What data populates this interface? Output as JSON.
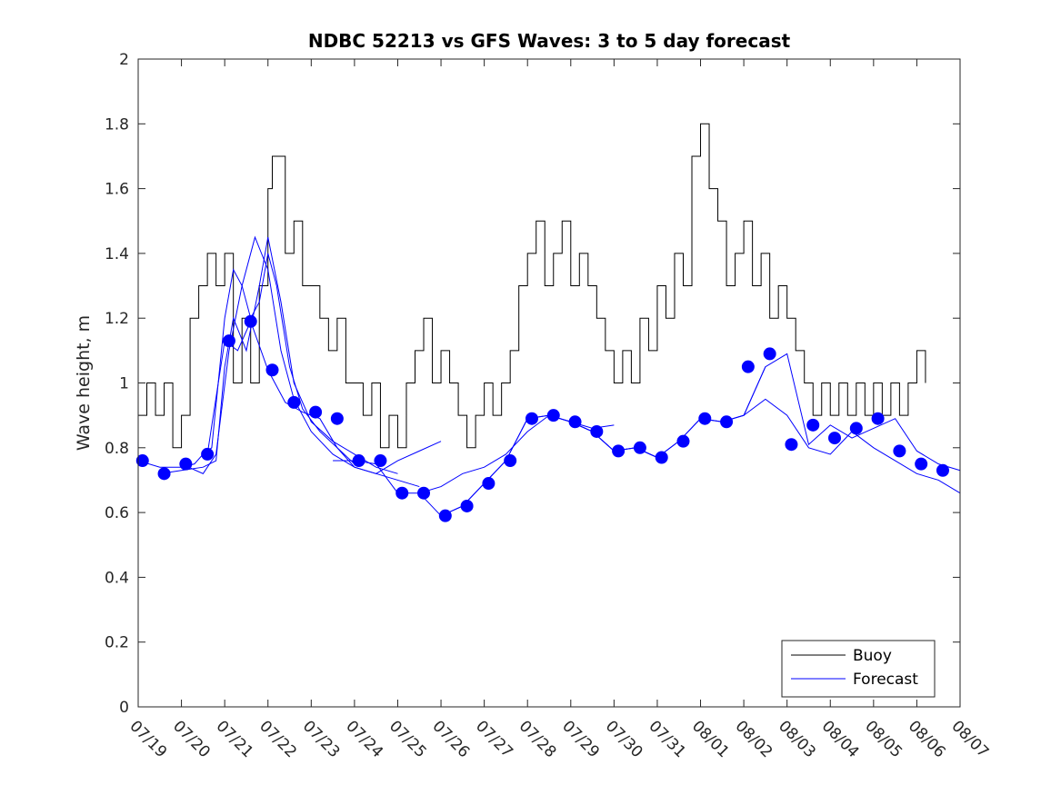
{
  "chart_data": {
    "type": "line",
    "title": "NDBC 52213 vs GFS Waves: 3 to 5 day forecast",
    "xlabel": "",
    "ylabel": "Wave height, m",
    "xlim": [
      0,
      19
    ],
    "ylim": [
      0,
      2
    ],
    "x_ticks": [
      "07/19",
      "07/20",
      "07/21",
      "07/22",
      "07/23",
      "07/24",
      "07/25",
      "07/26",
      "07/27",
      "07/28",
      "07/29",
      "07/30",
      "07/31",
      "08/01",
      "08/02",
      "08/03",
      "08/04",
      "08/05",
      "08/06",
      "08/07"
    ],
    "y_ticks": [
      "0",
      "0.2",
      "0.4",
      "0.6",
      "0.8",
      "1",
      "1.2",
      "1.4",
      "1.6",
      "1.8",
      "2"
    ],
    "grid": false,
    "legend": {
      "placement": "bottom-right",
      "entries": [
        "Buoy",
        "Forecast"
      ]
    },
    "colors": {
      "buoy": "#000000",
      "forecast": "#0000ff"
    },
    "series": [
      {
        "name": "Buoy",
        "x": [
          0,
          0.2,
          0.4,
          0.6,
          0.8,
          1.0,
          1.2,
          1.4,
          1.6,
          1.8,
          2.0,
          2.2,
          2.4,
          2.6,
          2.8,
          3.0,
          3.1,
          3.2,
          3.4,
          3.6,
          3.8,
          4.0,
          4.2,
          4.4,
          4.6,
          4.8,
          5.0,
          5.2,
          5.4,
          5.6,
          5.8,
          6.0,
          6.2,
          6.4,
          6.6,
          6.8,
          7.0,
          7.2,
          7.4,
          7.6,
          7.8,
          8.0,
          8.2,
          8.4,
          8.6,
          8.8,
          9.0,
          9.2,
          9.4,
          9.6,
          9.8,
          10.0,
          10.2,
          10.4,
          10.6,
          10.8,
          11.0,
          11.2,
          11.4,
          11.6,
          11.8,
          12.0,
          12.2,
          12.4,
          12.6,
          12.8,
          13.0,
          13.2,
          13.4,
          13.6,
          13.8,
          14.0,
          14.2,
          14.4,
          14.6,
          14.8,
          15.0,
          15.2,
          15.4,
          15.6,
          15.8,
          16.0,
          16.2,
          16.4,
          16.6,
          16.8,
          17.0,
          17.2,
          17.4,
          17.6,
          17.8,
          18.0,
          18.2
        ],
        "y": [
          0.9,
          1.0,
          0.9,
          1.0,
          0.8,
          0.9,
          1.2,
          1.3,
          1.4,
          1.3,
          1.4,
          1.0,
          1.2,
          1.0,
          1.3,
          1.6,
          1.7,
          1.7,
          1.4,
          1.5,
          1.3,
          1.3,
          1.2,
          1.1,
          1.2,
          1.0,
          1.0,
          0.9,
          1.0,
          0.8,
          0.9,
          0.8,
          1.0,
          1.1,
          1.2,
          1.0,
          1.1,
          1.0,
          0.9,
          0.8,
          0.9,
          1.0,
          0.9,
          1.0,
          1.1,
          1.3,
          1.4,
          1.5,
          1.3,
          1.4,
          1.5,
          1.3,
          1.4,
          1.3,
          1.2,
          1.1,
          1.0,
          1.1,
          1.0,
          1.2,
          1.1,
          1.3,
          1.2,
          1.4,
          1.3,
          1.7,
          1.8,
          1.6,
          1.5,
          1.3,
          1.4,
          1.5,
          1.3,
          1.4,
          1.2,
          1.3,
          1.2,
          1.1,
          1.0,
          0.9,
          1.0,
          0.9,
          1.0,
          0.9,
          1.0,
          0.9,
          1.0,
          0.9,
          1.0,
          0.9,
          1.0,
          1.1,
          1.0
        ]
      },
      {
        "name": "Forecast",
        "segments": [
          {
            "x": [
              0,
              0.5,
              1.0,
              1.3,
              1.5,
              1.7,
              2.0,
              2.2,
              2.4,
              2.6,
              2.8,
              3.0,
              3.2,
              3.5,
              3.8,
              4.2,
              4.6,
              5.0
            ],
            "y": [
              0.76,
              0.74,
              0.74,
              0.75,
              0.78,
              0.8,
              1.2,
              1.35,
              1.3,
              1.2,
              1.25,
              1.4,
              1.3,
              1.05,
              0.92,
              0.85,
              0.8,
              0.75
            ]
          },
          {
            "x": [
              0.5,
              1.0,
              1.5,
              1.8,
              2.0,
              2.2,
              2.5,
              2.8,
              3.0,
              3.3,
              3.6,
              4.0,
              4.5,
              5.0,
              5.5,
              6.0
            ],
            "y": [
              0.72,
              0.73,
              0.74,
              0.76,
              1.05,
              1.2,
              1.1,
              1.3,
              1.45,
              1.25,
              1.0,
              0.88,
              0.82,
              0.78,
              0.74,
              0.72
            ]
          },
          {
            "x": [
              1.0,
              1.5,
              1.8,
              2.1,
              2.4,
              2.7,
              3.0,
              3.3,
              3.6,
              4.0,
              4.5,
              5.0,
              5.5,
              6.0,
              6.5
            ],
            "y": [
              0.75,
              0.72,
              0.78,
              1.1,
              1.3,
              1.45,
              1.35,
              1.1,
              0.95,
              0.85,
              0.78,
              0.74,
              0.72,
              0.7,
              0.68
            ]
          },
          {
            "x": [
              1.6,
              2.0,
              2.3,
              2.6,
              3.0,
              3.4,
              3.8,
              4.2,
              4.6,
              5.0,
              5.5,
              6.0,
              6.5,
              7.0
            ],
            "y": [
              0.78,
              1.13,
              1.1,
              1.19,
              1.04,
              0.94,
              0.91,
              0.89,
              0.8,
              0.74,
              0.72,
              0.76,
              0.79,
              0.82
            ]
          },
          {
            "x": [
              4.5,
              5.0,
              5.5,
              6.0,
              6.5,
              7.0,
              7.5,
              8.0,
              8.5,
              9.0,
              9.5,
              10.0,
              10.5,
              11.0
            ],
            "y": [
              0.76,
              0.76,
              0.75,
              0.66,
              0.66,
              0.68,
              0.72,
              0.74,
              0.78,
              0.85,
              0.9,
              0.88,
              0.86,
              0.87
            ]
          },
          {
            "x": [
              6.5,
              7.0,
              7.5,
              8.0,
              8.5,
              9.0,
              9.5,
              10.0,
              10.5,
              11.0,
              11.5,
              12.0
            ],
            "y": [
              0.66,
              0.59,
              0.62,
              0.69,
              0.76,
              0.89,
              0.9,
              0.88,
              0.85,
              0.79,
              0.8,
              0.77
            ]
          },
          {
            "x": [
              7.0,
              7.5,
              8.0,
              8.5,
              9.0,
              9.5,
              10.0,
              10.5,
              11.0,
              11.5,
              12.0,
              12.5,
              13.0,
              13.5,
              14.0,
              14.5
            ],
            "y": [
              0.59,
              0.62,
              0.69,
              0.76,
              0.89,
              0.9,
              0.88,
              0.85,
              0.79,
              0.8,
              0.77,
              0.82,
              0.89,
              0.88,
              0.9,
              1.05
            ]
          },
          {
            "x": [
              10.0,
              10.5,
              11.0,
              11.5,
              12.0,
              12.5,
              13.0,
              13.5,
              14.0,
              14.5,
              15.0,
              15.5,
              16.0,
              16.5,
              17.0,
              17.5,
              18.0,
              18.5,
              19.0
            ],
            "y": [
              0.88,
              0.85,
              0.79,
              0.8,
              0.77,
              0.82,
              0.89,
              0.88,
              0.9,
              1.05,
              1.09,
              0.81,
              0.87,
              0.83,
              0.86,
              0.89,
              0.79,
              0.75,
              0.73
            ]
          },
          {
            "x": [
              14.0,
              14.5,
              15.0,
              15.5,
              16.0,
              16.5,
              17.0,
              17.5,
              18.0,
              18.5,
              19.0
            ],
            "y": [
              0.9,
              0.95,
              0.9,
              0.8,
              0.78,
              0.85,
              0.8,
              0.76,
              0.72,
              0.7,
              0.66
            ]
          }
        ],
        "markers_x": [
          0.1,
          0.6,
          1.1,
          1.6,
          2.1,
          2.6,
          3.1,
          3.6,
          4.1,
          4.6,
          5.1,
          5.6,
          6.1,
          6.6,
          7.1,
          7.6,
          8.1,
          8.6,
          9.1,
          9.6,
          10.1,
          10.6,
          11.1,
          11.6,
          12.1,
          12.6,
          13.1,
          13.6,
          14.1,
          14.6,
          15.1,
          15.6,
          16.1,
          16.6,
          17.1,
          17.6,
          18.1,
          18.6
        ],
        "markers_y": [
          0.76,
          0.72,
          0.75,
          0.78,
          1.13,
          1.19,
          1.04,
          0.94,
          0.91,
          0.89,
          0.76,
          0.76,
          0.66,
          0.66,
          0.59,
          0.62,
          0.69,
          0.76,
          0.89,
          0.9,
          0.88,
          0.85,
          0.79,
          0.8,
          0.77,
          0.82,
          0.89,
          0.88,
          1.05,
          1.09,
          0.81,
          0.87,
          0.83,
          0.86,
          0.89,
          0.79,
          0.75,
          0.73
        ]
      }
    ]
  }
}
